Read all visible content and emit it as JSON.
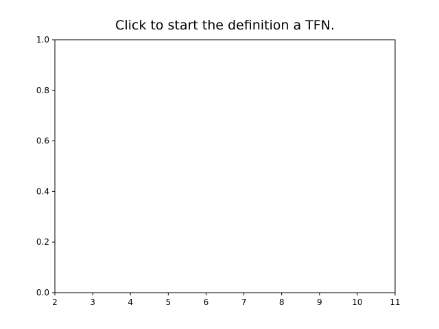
{
  "chart_data": {
    "type": "line",
    "title": "Click to start the definition a TFN.",
    "xlabel": "",
    "ylabel": "",
    "xlim": [
      2,
      11
    ],
    "ylim": [
      0.0,
      1.0
    ],
    "x_ticks": [
      2,
      3,
      4,
      5,
      6,
      7,
      8,
      9,
      10,
      11
    ],
    "x_tick_labels": [
      "2",
      "3",
      "4",
      "5",
      "6",
      "7",
      "8",
      "9",
      "10",
      "11"
    ],
    "y_ticks": [
      0.0,
      0.2,
      0.4,
      0.6,
      0.8,
      1.0
    ],
    "y_tick_labels": [
      "0.0",
      "0.2",
      "0.4",
      "0.6",
      "0.8",
      "1.0"
    ],
    "series": [],
    "grid": false
  }
}
